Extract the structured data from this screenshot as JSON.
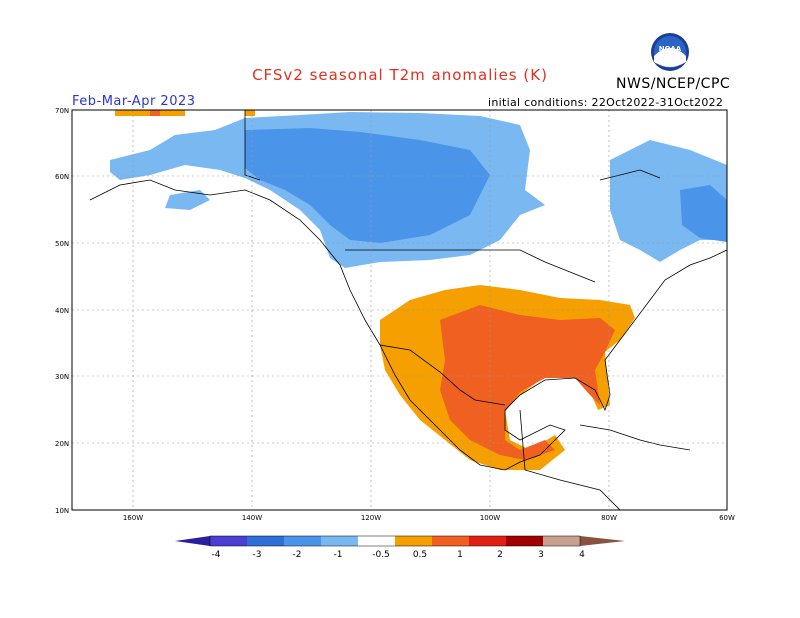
{
  "title": "CFSv2 seasonal T2m anomalies (K)",
  "agency": "NWS/NCEP/CPC",
  "period": "Feb-Mar-Apr 2023",
  "initial_conditions": "initial conditions: 22Oct2022-31Oct2022",
  "lat_labels": [
    "70N",
    "60N",
    "50N",
    "40N",
    "30N",
    "20N",
    "10N"
  ],
  "lon_labels": [
    "160W",
    "140W",
    "120W",
    "100W",
    "80W",
    "60W"
  ],
  "colorbar": {
    "labels": [
      "-4",
      "-3",
      "-2",
      "-1",
      "-0.5",
      "0.5",
      "1",
      "2",
      "3",
      "4"
    ],
    "colors": [
      "#2a1f9e",
      "#4a3fd0",
      "#2e6fd8",
      "#4a95ea",
      "#7ab8f2",
      "#ffffff",
      "#f5a000",
      "#f06020",
      "#e02010",
      "#a00000",
      "#c8a090",
      "#8a5040"
    ]
  }
}
